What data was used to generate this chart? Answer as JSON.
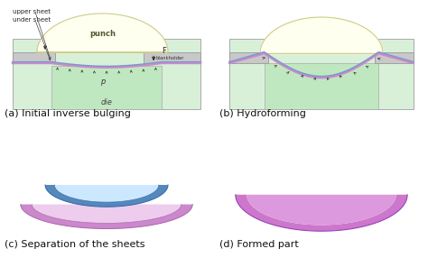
{
  "bg_color": "#ffffff",
  "die_fill": "#d8f0d8",
  "die_border": "#aaaaaa",
  "cavity_fill": "#c0e8c0",
  "punch_fill": "#fffff0",
  "punch_border": "#cccc88",
  "blankholder_fill": "#c8c8c8",
  "blankholder_border": "#999999",
  "upper_sheet_color": "#7799cc",
  "lower_sheet_color": "#cc88cc",
  "arrow_color": "#222222",
  "label_a": "(a) Initial inverse bulging",
  "label_b": "(b) Hydroforming",
  "label_c": "(c) Separation of the sheets",
  "label_d": "(d) Formed part",
  "text_punch": "punch",
  "text_die": "die",
  "text_blankholder": "blankholder",
  "text_upper": "upper sheet",
  "text_under": "under sheet",
  "text_p": "p",
  "text_f": "F",
  "bowl_blue_outer": "#5588bb",
  "bowl_blue_mid": "#88bbdd",
  "bowl_blue_inner": "#cce8ff",
  "bowl_pink_outer": "#cc88cc",
  "bowl_pink_mid": "#dd99dd",
  "bowl_pink_inner": "#eeccee",
  "formed_outer": "#cc77cc",
  "formed_mid": "#dd99dd",
  "formed_inner": "#ffffff",
  "label_fontsize": 8,
  "annot_fontsize": 6,
  "small_fontsize": 5
}
